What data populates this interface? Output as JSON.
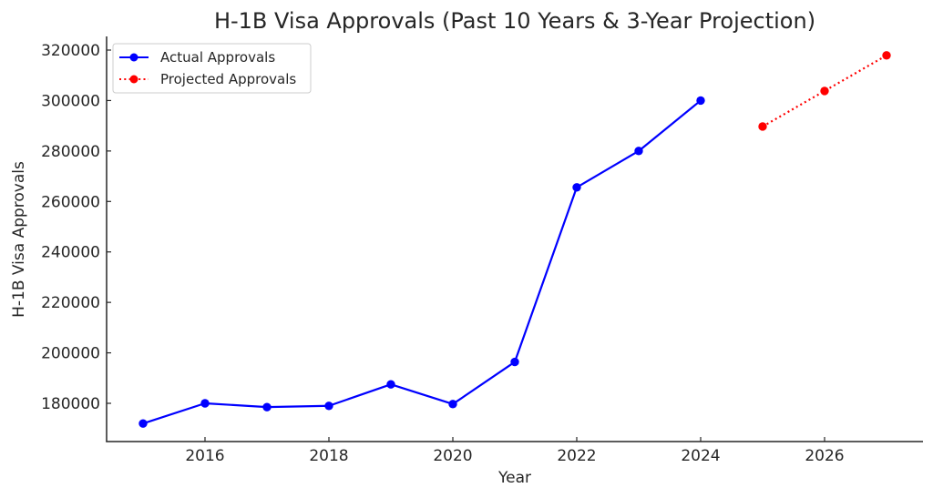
{
  "chart_data": {
    "type": "line",
    "title": "H-1B Visa Approvals (Past 10 Years & 3-Year Projection)",
    "xlabel": "Year",
    "ylabel": "H-1B Visa Approvals",
    "xlim": [
      2014.4,
      2027.6
    ],
    "ylim": [
      165000,
      325000
    ],
    "x_ticks": [
      2016,
      2018,
      2020,
      2022,
      2024,
      2026
    ],
    "y_ticks": [
      180000,
      200000,
      220000,
      240000,
      260000,
      280000,
      300000,
      320000
    ],
    "grid": false,
    "legend_position": "upper left",
    "series": [
      {
        "name": "Actual Approvals",
        "color": "#0000ff",
        "line_style": "solid",
        "marker": "circle",
        "x": [
          2015,
          2016,
          2017,
          2018,
          2019,
          2020,
          2021,
          2022,
          2023,
          2024
        ],
        "values": [
          172000,
          180000,
          178500,
          179000,
          187500,
          179700,
          196400,
          265600,
          280000,
          300000
        ]
      },
      {
        "name": "Projected Approvals",
        "color": "#ff0000",
        "line_style": "dotted",
        "marker": "circle",
        "x": [
          2025,
          2026,
          2027
        ],
        "values": [
          289700,
          303800,
          317900
        ]
      }
    ]
  }
}
